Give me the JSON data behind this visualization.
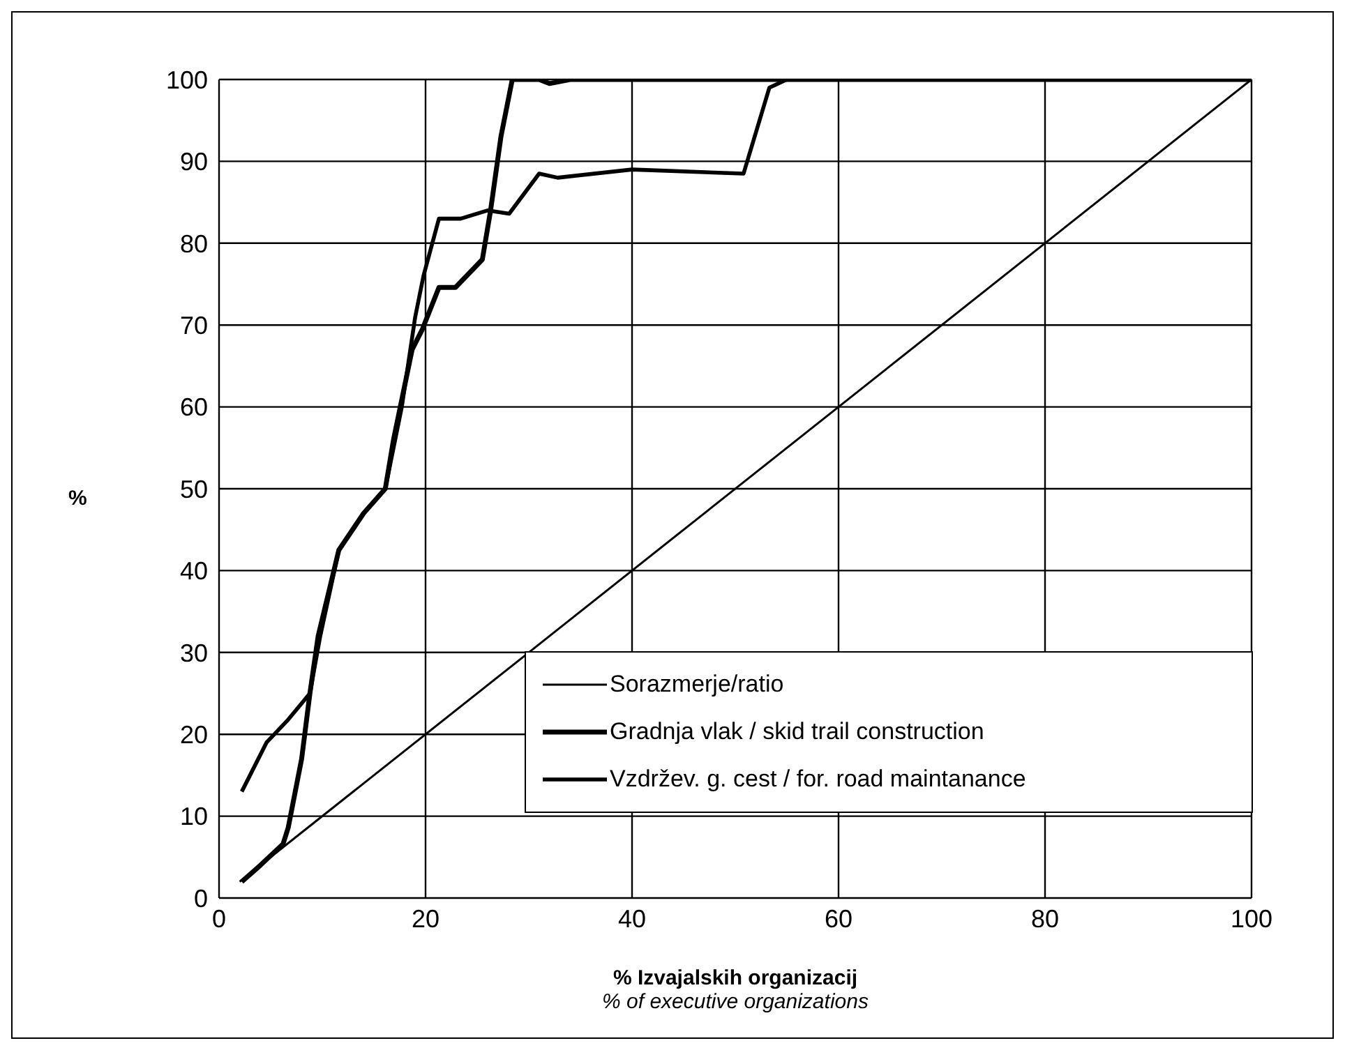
{
  "chart_data": {
    "type": "line",
    "xlabel": "% Izvajalskih organizacij\n% of executive organizations",
    "ylabel": "%",
    "xlim": [
      0,
      100
    ],
    "xticks": [
      0,
      20,
      40,
      60,
      80,
      100
    ],
    "ylim": [
      0,
      100
    ],
    "yticks": [
      0,
      10,
      20,
      30,
      40,
      50,
      60,
      70,
      80,
      90,
      100
    ],
    "grid": true,
    "legend": "bottom right",
    "marker": "none",
    "line_style": "solid",
    "series": [
      {
        "name": "Sorazmerje/ratio",
        "color": "#000000",
        "x": [
          2,
          100
        ],
        "values": [
          2,
          100
        ]
      },
      {
        "name": "Gradnja vlak / skid trail construction",
        "color": "#000000",
        "x": [
          2.2,
          4,
          6.2,
          6.7,
          8,
          8.8,
          9.6,
          11.6,
          14,
          16.1,
          16.9,
          18.7,
          19.7,
          21.3,
          22.9,
          25.5,
          26.3,
          27.3,
          28.4,
          31,
          32,
          34,
          100
        ],
        "values": [
          2,
          4,
          6.6,
          8.6,
          17,
          25,
          32,
          42.5,
          47,
          50,
          56,
          67,
          69.5,
          74.6,
          74.6,
          78,
          84,
          93,
          100,
          100,
          99.5,
          100,
          100
        ]
      },
      {
        "name": "Vzdržev. g. cest / for. road maintanance",
        "color": "#000000",
        "x": [
          2.2,
          4.6,
          6.7,
          8.8,
          9.8,
          11.6,
          14,
          16.1,
          17.7,
          19,
          19.8,
          21.3,
          23.4,
          26,
          28.1,
          31,
          32.8,
          40,
          50.8,
          53.3,
          55,
          100
        ],
        "values": [
          13,
          19,
          21.8,
          25,
          32,
          42.5,
          47,
          50,
          60,
          71,
          76,
          83,
          83,
          84,
          83.6,
          88.5,
          88,
          89,
          88.5,
          99,
          100,
          100
        ]
      }
    ]
  }
}
